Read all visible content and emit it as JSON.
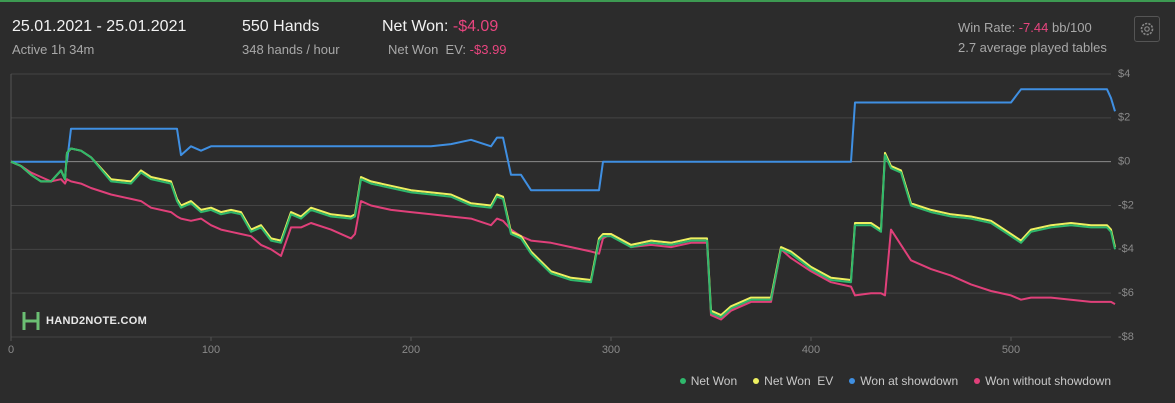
{
  "header": {
    "date_range": "25.01.2021 - 25.01.2021",
    "active": "Active 1h 34m",
    "hands": "550 Hands",
    "hands_per_hour": "348 hands / hour",
    "net_won_label": "Net Won:",
    "net_won_value": "-$4.09",
    "net_won_ev_label": "Net Won  EV:",
    "net_won_ev_value": "-$3.99",
    "win_rate_label": "Win Rate:",
    "win_rate_value": "-7.44",
    "win_rate_unit": "bb/100",
    "tables": "2.7 average played tables"
  },
  "logo": "HAND2NOTE.COM",
  "chart_data": {
    "type": "line",
    "x": [
      0,
      5,
      10,
      15,
      20,
      25,
      27,
      28,
      30,
      35,
      40,
      50,
      60,
      65,
      70,
      80,
      83,
      85,
      90,
      95,
      100,
      105,
      110,
      115,
      120,
      125,
      130,
      135,
      140,
      145,
      150,
      160,
      170,
      172,
      175,
      180,
      190,
      200,
      210,
      220,
      230,
      240,
      243,
      246,
      250,
      255,
      260,
      270,
      280,
      290,
      294,
      296,
      300,
      310,
      320,
      330,
      340,
      345,
      348,
      350,
      355,
      360,
      370,
      380,
      385,
      390,
      400,
      410,
      420,
      422,
      430,
      435,
      437,
      440,
      445,
      450,
      460,
      470,
      480,
      490,
      500,
      505,
      510,
      520,
      530,
      540,
      548,
      550,
      552
    ],
    "series": [
      {
        "name": "Net Won",
        "color": "#2fb86c",
        "values": [
          0,
          -0.2,
          -0.6,
          -0.9,
          -0.9,
          -0.4,
          -0.8,
          0.4,
          0.6,
          0.5,
          0.2,
          -0.9,
          -1.0,
          -0.5,
          -0.8,
          -1.0,
          -1.8,
          -2.1,
          -1.9,
          -2.3,
          -2.2,
          -2.4,
          -2.3,
          -2.4,
          -3.2,
          -3.0,
          -3.6,
          -3.7,
          -2.4,
          -2.6,
          -2.2,
          -2.5,
          -2.6,
          -2.5,
          -0.8,
          -1.0,
          -1.2,
          -1.4,
          -1.5,
          -1.6,
          -2.0,
          -2.1,
          -1.6,
          -1.7,
          -3.3,
          -3.5,
          -4.2,
          -5.1,
          -5.4,
          -5.5,
          -3.6,
          -3.4,
          -3.4,
          -3.9,
          -3.7,
          -3.8,
          -3.6,
          -3.6,
          -3.6,
          -6.9,
          -7.1,
          -6.7,
          -6.3,
          -6.3,
          -4.0,
          -4.2,
          -4.9,
          -5.4,
          -5.5,
          -2.9,
          -2.9,
          -3.2,
          0.3,
          -0.3,
          -0.5,
          -2.0,
          -2.3,
          -2.5,
          -2.6,
          -2.8,
          -3.4,
          -3.7,
          -3.2,
          -3.0,
          -2.9,
          -3.0,
          -3.0,
          -3.2,
          -4.0
        ]
      },
      {
        "name": "Net Won  EV",
        "color": "#eef060",
        "values": [
          0,
          -0.2,
          -0.6,
          -0.9,
          -0.9,
          -0.4,
          -0.8,
          0.4,
          0.6,
          0.5,
          0.2,
          -0.8,
          -0.9,
          -0.4,
          -0.7,
          -0.9,
          -1.7,
          -2.0,
          -1.8,
          -2.2,
          -2.1,
          -2.3,
          -2.2,
          -2.3,
          -3.1,
          -2.9,
          -3.5,
          -3.6,
          -2.3,
          -2.5,
          -2.1,
          -2.4,
          -2.5,
          -2.4,
          -0.7,
          -0.9,
          -1.1,
          -1.3,
          -1.4,
          -1.5,
          -1.9,
          -2.0,
          -1.5,
          -1.6,
          -3.2,
          -3.4,
          -4.1,
          -5.0,
          -5.3,
          -5.4,
          -3.5,
          -3.3,
          -3.3,
          -3.8,
          -3.6,
          -3.7,
          -3.5,
          -3.5,
          -3.5,
          -6.8,
          -7.0,
          -6.6,
          -6.2,
          -6.2,
          -3.9,
          -4.1,
          -4.8,
          -5.3,
          -5.4,
          -2.8,
          -2.8,
          -3.1,
          0.4,
          -0.2,
          -0.4,
          -1.9,
          -2.2,
          -2.4,
          -2.5,
          -2.7,
          -3.3,
          -3.6,
          -3.1,
          -2.9,
          -2.8,
          -2.9,
          -2.9,
          -3.1,
          -3.9
        ]
      },
      {
        "name": "Won at showdown",
        "color": "#3f8fe2",
        "values": [
          0,
          0,
          0,
          0,
          0,
          0,
          0,
          0,
          1.5,
          1.5,
          1.5,
          1.5,
          1.5,
          1.5,
          1.5,
          1.5,
          1.5,
          0.3,
          0.7,
          0.5,
          0.7,
          0.7,
          0.7,
          0.7,
          0.7,
          0.7,
          0.7,
          0.7,
          0.7,
          0.7,
          0.7,
          0.7,
          0.7,
          0.7,
          0.7,
          0.7,
          0.7,
          0.7,
          0.7,
          0.8,
          1.0,
          0.7,
          1.1,
          1.1,
          -0.6,
          -0.6,
          -1.3,
          -1.3,
          -1.3,
          -1.3,
          -1.3,
          0,
          0,
          0,
          0,
          0,
          0,
          0,
          0,
          0,
          0,
          0,
          0,
          0,
          0,
          0,
          0,
          0,
          0,
          2.7,
          2.7,
          2.7,
          2.7,
          2.7,
          2.7,
          2.7,
          2.7,
          2.7,
          2.7,
          2.7,
          2.7,
          3.3,
          3.3,
          3.3,
          3.3,
          3.3,
          3.3,
          2.9,
          2.3
        ]
      },
      {
        "name": "Won without showdown",
        "color": "#e0407a",
        "values": [
          0,
          -0.2,
          -0.5,
          -0.7,
          -0.9,
          -0.8,
          -1.0,
          -0.8,
          -0.9,
          -1.0,
          -1.2,
          -1.5,
          -1.7,
          -1.8,
          -2.1,
          -2.3,
          -2.5,
          -2.6,
          -2.7,
          -2.6,
          -2.9,
          -3.1,
          -3.2,
          -3.3,
          -3.4,
          -3.8,
          -4.0,
          -4.3,
          -3.0,
          -3.0,
          -2.8,
          -3.1,
          -3.5,
          -3.3,
          -1.8,
          -2.0,
          -2.2,
          -2.3,
          -2.4,
          -2.5,
          -2.6,
          -2.9,
          -2.6,
          -2.7,
          -3.1,
          -3.4,
          -3.6,
          -3.7,
          -3.9,
          -4.1,
          -4.2,
          -3.5,
          -3.3,
          -3.9,
          -3.8,
          -3.9,
          -3.7,
          -3.7,
          -3.7,
          -7.0,
          -7.2,
          -6.8,
          -6.4,
          -6.4,
          -4.0,
          -4.4,
          -5.0,
          -5.5,
          -5.7,
          -6.1,
          -6.0,
          -6.0,
          -6.1,
          -3.1,
          -3.8,
          -4.5,
          -4.9,
          -5.2,
          -5.6,
          -5.9,
          -6.1,
          -6.3,
          -6.2,
          -6.2,
          -6.3,
          -6.4,
          -6.4,
          -6.4,
          -6.5
        ]
      }
    ],
    "xlim": [
      0,
      553
    ],
    "xticks": [
      0,
      100,
      200,
      300,
      400,
      500
    ],
    "ylim": [
      -8,
      4
    ],
    "yticks": [
      {
        "value": 4,
        "label": "$4"
      },
      {
        "value": 2,
        "label": "$2"
      },
      {
        "value": 0,
        "label": "$0"
      },
      {
        "value": -2,
        "label": "-$2"
      },
      {
        "value": -4,
        "label": "-$4"
      },
      {
        "value": -6,
        "label": "-$6"
      },
      {
        "value": -8,
        "label": "-$8"
      }
    ],
    "grid": true
  }
}
